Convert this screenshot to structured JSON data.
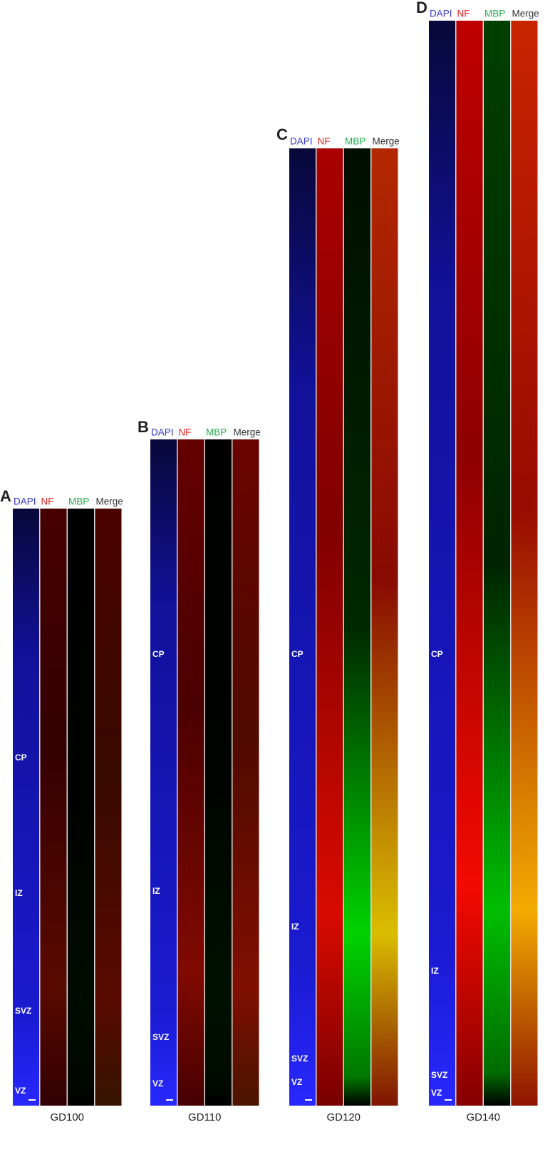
{
  "panels": [
    {
      "letter": "A",
      "channels": [
        "DAPI",
        "NF",
        "MBP",
        "Merge"
      ],
      "zones": [
        "CP",
        "IZ",
        "SVZ",
        "VZ"
      ],
      "caption": "GD100"
    },
    {
      "letter": "B",
      "channels": [
        "DAPI",
        "NF",
        "MBP",
        "Merge"
      ],
      "zones": [
        "CP",
        "IZ",
        "SVZ",
        "VZ"
      ],
      "caption": "GD110"
    },
    {
      "letter": "C",
      "channels": [
        "DAPI",
        "NF",
        "MBP",
        "Merge"
      ],
      "zones": [
        "CP",
        "IZ",
        "SVZ",
        "VZ"
      ],
      "caption": "GD120"
    },
    {
      "letter": "D",
      "channels": [
        "DAPI",
        "NF",
        "MBP",
        "Merge"
      ],
      "zones": [
        "CP",
        "IZ",
        "SVZ",
        "VZ"
      ],
      "caption": "GD140"
    }
  ]
}
